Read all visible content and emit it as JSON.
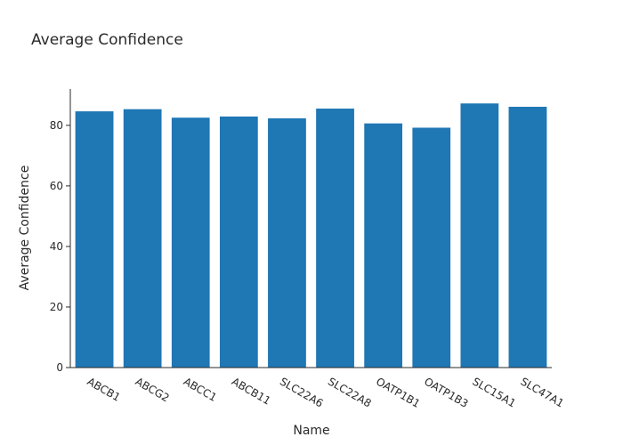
{
  "chart_data": {
    "type": "bar",
    "title": "Average Confidence",
    "xlabel": "Name",
    "ylabel": "Average Confidence",
    "categories": [
      "ABCB1",
      "ABCG2",
      "ABCC1",
      "ABCB11",
      "SLC22A6",
      "SLC22A8",
      "OATP1B1",
      "OATP1B3",
      "SLC15A1",
      "SLC47A1"
    ],
    "values": [
      84.7,
      85.4,
      82.6,
      83.0,
      82.4,
      85.6,
      80.7,
      79.3,
      87.3,
      86.2
    ],
    "ylim": [
      0,
      92
    ],
    "yticks": [
      0,
      20,
      40,
      60,
      80
    ],
    "grid": false,
    "bar_color": "#1f77b4"
  }
}
